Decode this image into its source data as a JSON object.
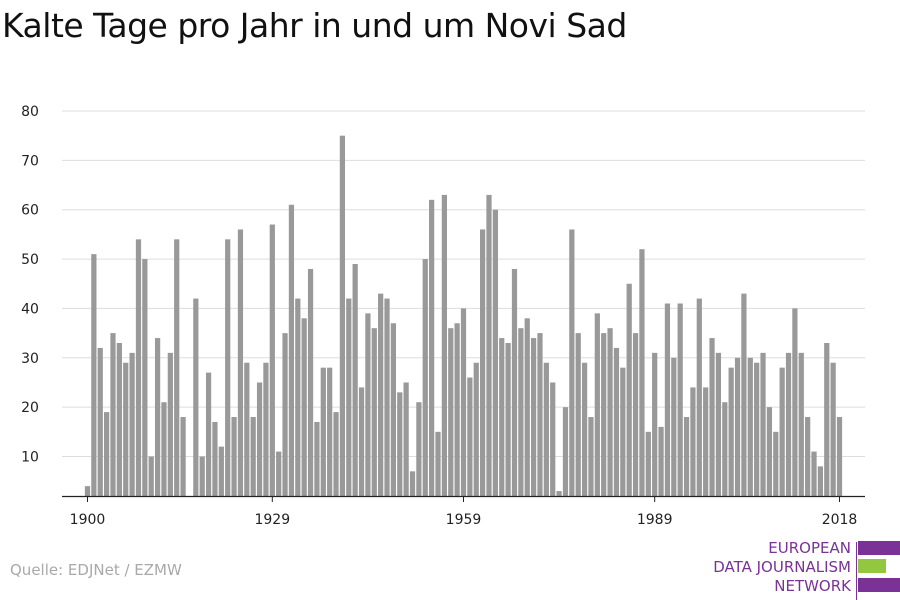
{
  "title": "Kalte Tage pro Jahr in und um Novi Sad",
  "source": "Quelle: EDJNet / EZMW",
  "logo": {
    "lines": [
      "EUROPEAN",
      "DATA JOURNALISM",
      "NETWORK"
    ],
    "colors": {
      "purple": "#7b3296",
      "green": "#93c740"
    }
  },
  "colors": {
    "bar": "#999999",
    "grid": "#dddddd",
    "axis": "#222222",
    "text": "#222222"
  },
  "chart_data": {
    "type": "bar",
    "title": "Kalte Tage pro Jahr in und um Novi Sad",
    "xlabel": "",
    "ylabel": "",
    "xlim": [
      1896,
      2022
    ],
    "ylim": [
      2,
      80
    ],
    "yticks": [
      10,
      20,
      30,
      40,
      50,
      60,
      70,
      80
    ],
    "xticks": [
      1900,
      1929,
      1959,
      1989,
      2018
    ],
    "grid": true,
    "x": [
      1900,
      1901,
      1902,
      1903,
      1904,
      1905,
      1906,
      1907,
      1908,
      1909,
      1910,
      1911,
      1912,
      1913,
      1914,
      1915,
      1916,
      1917,
      1918,
      1919,
      1920,
      1921,
      1922,
      1923,
      1924,
      1925,
      1926,
      1927,
      1928,
      1929,
      1930,
      1931,
      1932,
      1933,
      1934,
      1935,
      1936,
      1937,
      1938,
      1939,
      1940,
      1941,
      1942,
      1943,
      1944,
      1945,
      1946,
      1947,
      1948,
      1949,
      1950,
      1951,
      1952,
      1953,
      1954,
      1955,
      1956,
      1957,
      1958,
      1959,
      1960,
      1961,
      1962,
      1963,
      1964,
      1965,
      1966,
      1967,
      1968,
      1969,
      1970,
      1971,
      1972,
      1973,
      1974,
      1975,
      1976,
      1977,
      1978,
      1979,
      1980,
      1981,
      1982,
      1983,
      1984,
      1985,
      1986,
      1987,
      1988,
      1989,
      1990,
      1991,
      1992,
      1993,
      1994,
      1995,
      1996,
      1997,
      1998,
      1999,
      2000,
      2001,
      2002,
      2003,
      2004,
      2005,
      2006,
      2007,
      2008,
      2009,
      2010,
      2011,
      2012,
      2013,
      2014,
      2015,
      2016,
      2017,
      2018
    ],
    "values": [
      4,
      51,
      32,
      19,
      35,
      33,
      29,
      31,
      54,
      50,
      10,
      34,
      21,
      31,
      54,
      18,
      2,
      42,
      10,
      27,
      17,
      12,
      54,
      18,
      56,
      29,
      18,
      25,
      29,
      57,
      11,
      35,
      61,
      42,
      38,
      48,
      17,
      28,
      28,
      19,
      75,
      42,
      49,
      24,
      39,
      36,
      43,
      42,
      37,
      23,
      25,
      7,
      21,
      50,
      62,
      15,
      63,
      36,
      37,
      40,
      26,
      29,
      56,
      63,
      60,
      34,
      33,
      48,
      36,
      38,
      34,
      35,
      29,
      25,
      3,
      20,
      56,
      35,
      29,
      18,
      39,
      35,
      36,
      32,
      28,
      45,
      35,
      52,
      15,
      31,
      16,
      41,
      30,
      41,
      18,
      24,
      42,
      24,
      34,
      31,
      21,
      28,
      30,
      43,
      30,
      29,
      31,
      20,
      15,
      28,
      31,
      40,
      31,
      18,
      11,
      8,
      33,
      29,
      18
    ]
  }
}
